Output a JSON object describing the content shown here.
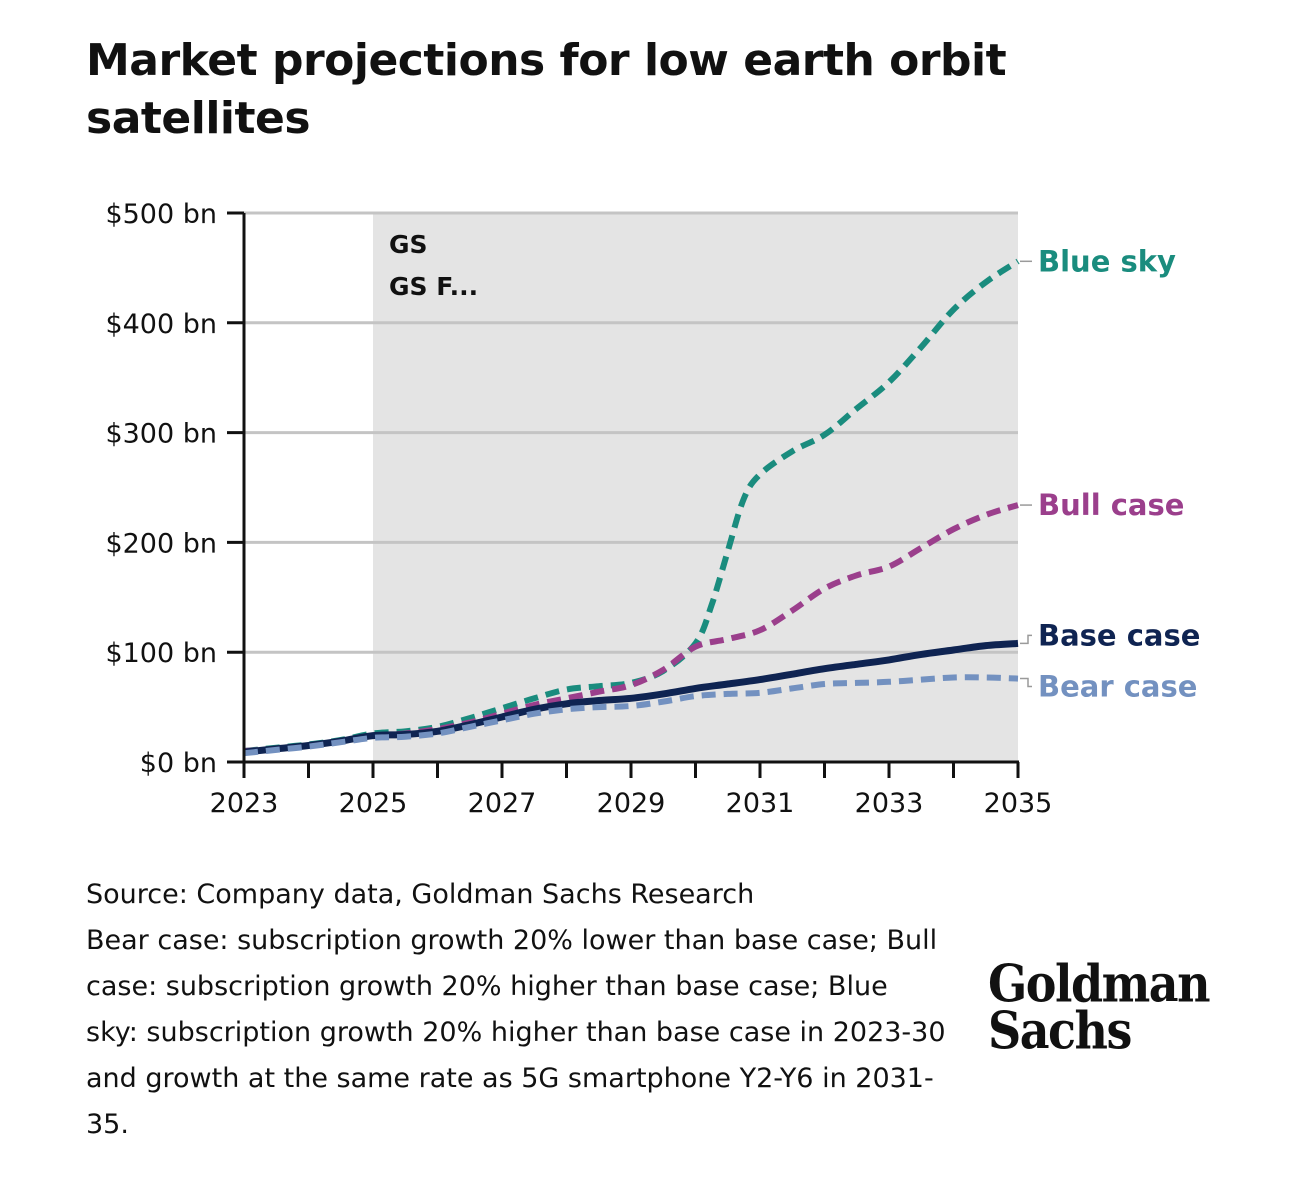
{
  "title": "Market projections for low earth orbit satellites",
  "notes": {
    "source": "Source: Company data, Goldman Sachs Research",
    "definition": "Bear case: subscription growth 20% lower than base case; Bull case: subscription growth 20% higher than base case; Blue sky: subscription growth 20% higher than base case in 2023-30 and growth at the same rate as 5G smartphone Y2-Y6 in 2031-35."
  },
  "logo": {
    "line1": "Goldman",
    "line2": "Sachs"
  },
  "colors": {
    "blue_sky": "#1a8c7e",
    "bull_case": "#9b3f8c",
    "base_case": "#0f2452",
    "bear_case": "#7391c0",
    "forecast_shade": "#e4e4e4",
    "gridline": "#c4c4c4",
    "axis": "#111111"
  },
  "chart_data": {
    "type": "line",
    "title": "Market projections for low earth orbit satellites",
    "xlabel": "",
    "ylabel": "",
    "xlim": [
      2023,
      2035
    ],
    "ylim": [
      0,
      500
    ],
    "y_ticks": [
      0,
      100,
      200,
      300,
      400,
      500
    ],
    "y_tick_labels": [
      "$0 bn",
      "$100 bn",
      "$200 bn",
      "$300 bn",
      "$400 bn",
      "$500 bn"
    ],
    "x_ticks": [
      2023,
      2024,
      2025,
      2026,
      2027,
      2028,
      2029,
      2030,
      2031,
      2032,
      2033,
      2034,
      2035
    ],
    "x_tick_labels": [
      "2023",
      "2025",
      "2027",
      "2029",
      "2031",
      "2033",
      "2035"
    ],
    "x_tick_label_values": [
      2023,
      2025,
      2027,
      2029,
      2031,
      2033,
      2035
    ],
    "grid": true,
    "legend": "inline labels at right end of each line",
    "forecast_region": {
      "from": 2025,
      "to": 2035,
      "labels": [
        "GS",
        "GS F..."
      ]
    },
    "series": [
      {
        "name": "Blue sky",
        "key": "blue_sky",
        "style": "dashed",
        "x": [
          2023,
          2023.5,
          2024,
          2024.5,
          2025,
          2025.5,
          2026,
          2026.5,
          2027,
          2027.5,
          2028,
          2028.5,
          2029,
          2029.5,
          2030,
          2030.25,
          2030.5,
          2030.75,
          2031,
          2031.5,
          2032,
          2032.5,
          2033,
          2033.5,
          2034,
          2034.5,
          2035
        ],
        "values": [
          10,
          13,
          16,
          20,
          26,
          28,
          32,
          40,
          49,
          58,
          66,
          69,
          72,
          83,
          108,
          143,
          192,
          240,
          262,
          283,
          298,
          322,
          346,
          378,
          412,
          437,
          456
        ]
      },
      {
        "name": "Bull case",
        "key": "bull_case",
        "style": "dashed",
        "x": [
          2023,
          2023.5,
          2024,
          2024.5,
          2025,
          2025.5,
          2026,
          2026.5,
          2027,
          2027.5,
          2028,
          2028.5,
          2029,
          2029.5,
          2030,
          2030.5,
          2031,
          2031.5,
          2032,
          2032.5,
          2033,
          2033.5,
          2034,
          2034.5,
          2035
        ],
        "values": [
          10,
          12,
          15,
          19,
          24,
          26,
          30,
          36,
          44,
          52,
          58,
          64,
          70,
          84,
          105,
          112,
          120,
          138,
          158,
          170,
          178,
          195,
          212,
          225,
          234
        ]
      },
      {
        "name": "Base case",
        "key": "base_case",
        "style": "solid",
        "x": [
          2023,
          2023.5,
          2024,
          2024.5,
          2025,
          2025.5,
          2026,
          2026.5,
          2027,
          2027.5,
          2028,
          2028.5,
          2029,
          2029.5,
          2030,
          2030.5,
          2031,
          2031.5,
          2032,
          2032.5,
          2033,
          2033.5,
          2034,
          2034.5,
          2035
        ],
        "values": [
          9,
          12,
          15,
          19,
          24,
          25,
          28,
          34,
          41,
          48,
          53,
          56,
          58,
          62,
          67,
          71,
          75,
          80,
          85,
          89,
          93,
          98,
          102,
          106,
          108
        ]
      },
      {
        "name": "Bear case",
        "key": "bear_case",
        "style": "dashed",
        "x": [
          2023,
          2023.5,
          2024,
          2024.5,
          2025,
          2025.5,
          2026,
          2026.5,
          2027,
          2027.5,
          2028,
          2028.5,
          2029,
          2029.5,
          2030,
          2030.5,
          2031,
          2031.5,
          2032,
          2032.5,
          2033,
          2033.5,
          2034,
          2034.5,
          2035
        ],
        "values": [
          8,
          11,
          14,
          18,
          22,
          23,
          26,
          32,
          38,
          44,
          48,
          50,
          51,
          55,
          60,
          62,
          63,
          67,
          71,
          72,
          73,
          75,
          77,
          77,
          76
        ]
      }
    ]
  }
}
